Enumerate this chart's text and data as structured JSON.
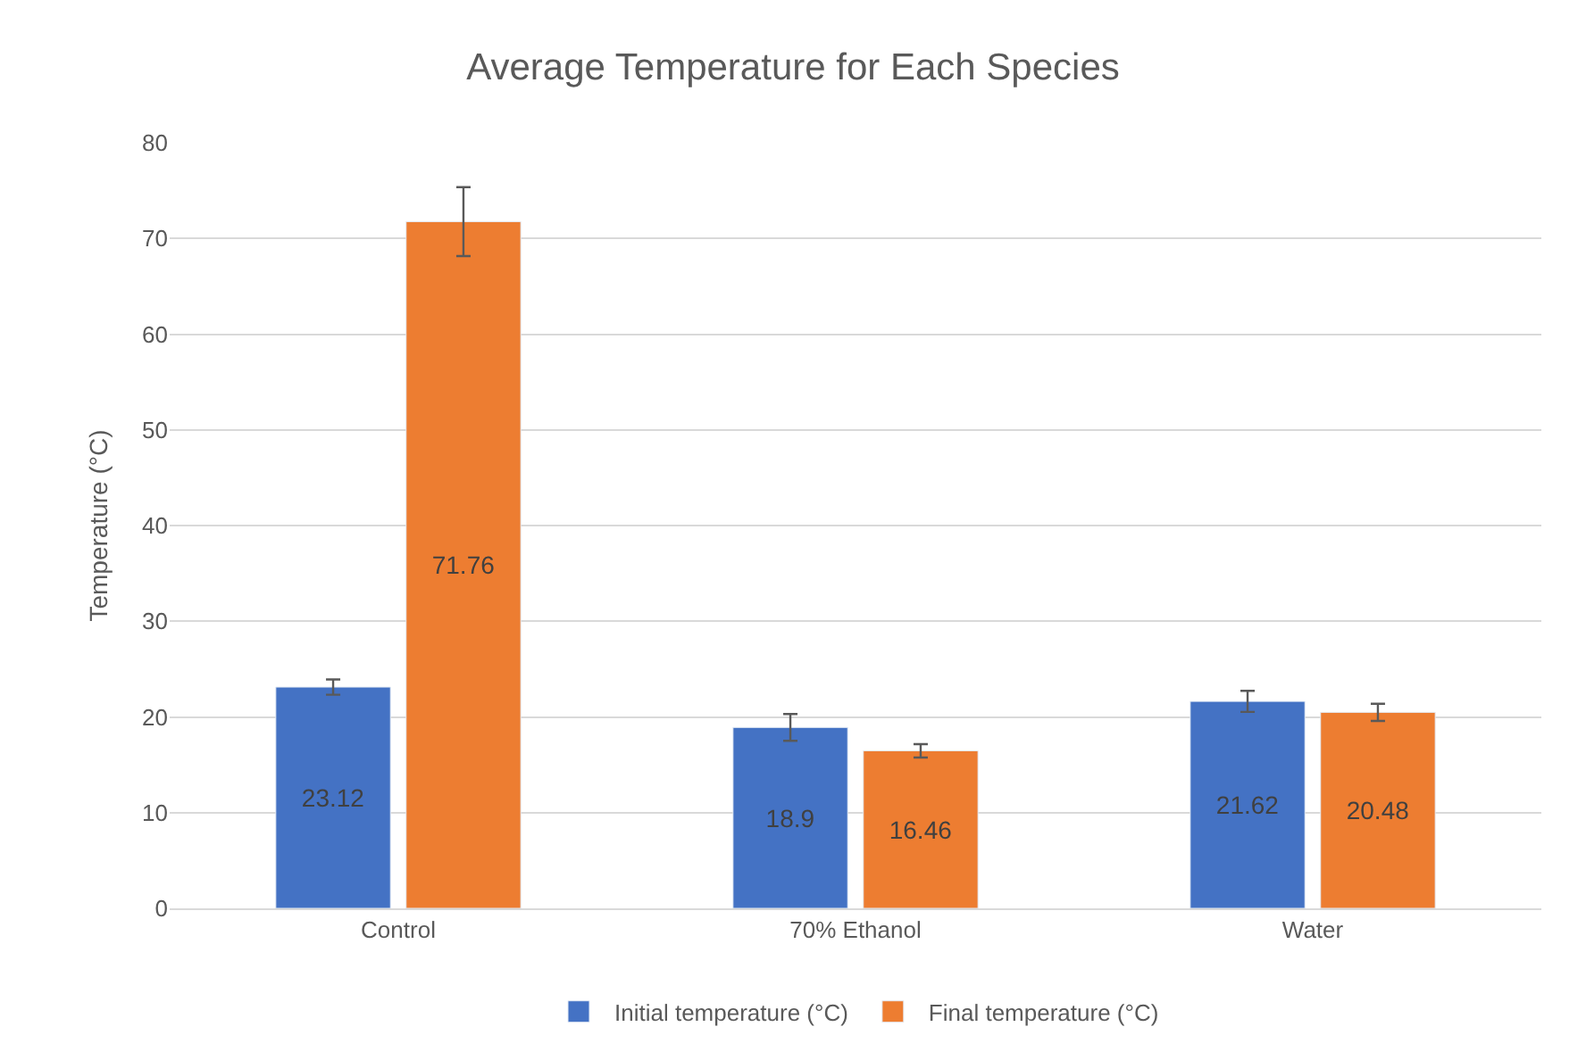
{
  "chart_data": {
    "type": "bar",
    "title": "Average Temperature for Each Species",
    "ylabel": "Temperature (°C)",
    "categories": [
      "Control",
      "70% Ethanol",
      "Water"
    ],
    "series": [
      {
        "name": "Initial temperature (°C)",
        "color": "#4472c4",
        "values": [
          23.12,
          18.9,
          21.62
        ],
        "errors": [
          0.8,
          1.4,
          1.1
        ]
      },
      {
        "name": "Final temperature (°C)",
        "color": "#ed7d31",
        "values": [
          71.76,
          16.46,
          20.48
        ],
        "errors": [
          3.6,
          0.7,
          0.9
        ]
      }
    ],
    "ylim": [
      0,
      80
    ],
    "yticks": [
      0,
      10,
      20,
      30,
      40,
      50,
      60,
      70,
      80
    ],
    "grid": "y",
    "legend": "bottom",
    "data_labels": true
  }
}
